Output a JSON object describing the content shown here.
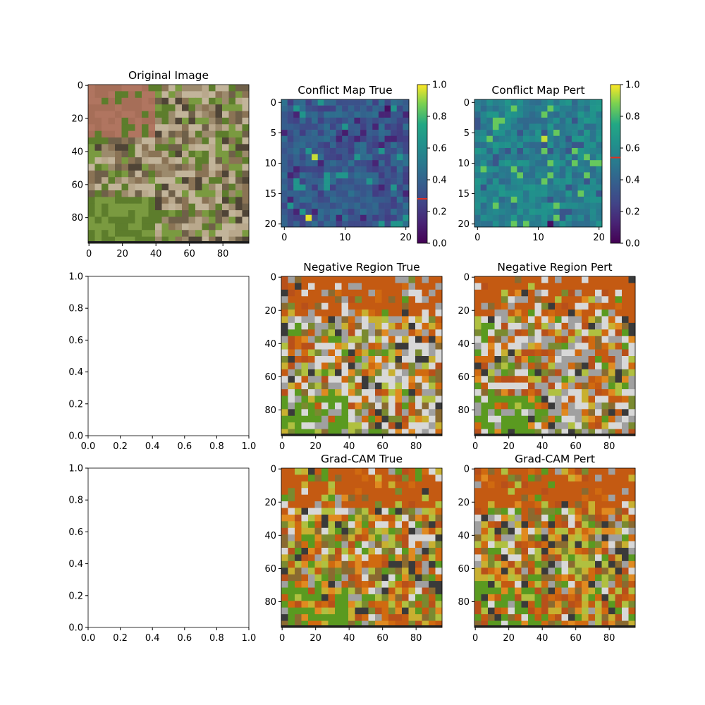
{
  "chart_data": [
    {
      "type": "image",
      "title": "Original Image",
      "xticks": [
        "0",
        "20",
        "40",
        "60",
        "80"
      ],
      "yticks": [
        "0",
        "20",
        "40",
        "60",
        "80"
      ],
      "xlim": [
        0,
        96
      ],
      "ylim": [
        96,
        0
      ],
      "description_colors": {
        "background": "#b07560",
        "foliage": "#7a9a40",
        "fur": "#8a7355"
      }
    },
    {
      "type": "heatmap",
      "title": "Conflict Map True",
      "xticks": [
        "0",
        "10",
        "20"
      ],
      "yticks": [
        "0",
        "5",
        "10",
        "15",
        "20"
      ],
      "grid_size": [
        21,
        21
      ],
      "colormap": "viridis",
      "colorbar_ticks": [
        "0.0",
        "0.2",
        "0.4",
        "0.6",
        "0.8",
        "1.0"
      ],
      "colorbar_range": [
        0,
        1
      ],
      "colorbar_marker": 0.28,
      "bright_cells": [
        {
          "row": 9,
          "col": 5,
          "value": 0.95
        },
        {
          "row": 19,
          "col": 4,
          "value": 0.98
        }
      ],
      "dark_cells": [
        {
          "row": 1,
          "col": 17,
          "value": 0.05
        },
        {
          "row": 5,
          "col": 10,
          "value": 0.1
        }
      ],
      "typical_value": 0.35
    },
    {
      "type": "heatmap",
      "title": "Conflict Map Pert",
      "xticks": [
        "0",
        "10",
        "20"
      ],
      "yticks": [
        "0",
        "5",
        "10",
        "15",
        "20"
      ],
      "grid_size": [
        21,
        21
      ],
      "colormap": "viridis",
      "colorbar_ticks": [
        "0.0",
        "0.2",
        "0.4",
        "0.6",
        "0.8",
        "1.0"
      ],
      "colorbar_range": [
        0,
        1
      ],
      "colorbar_marker": 0.54,
      "bright_cells": [
        {
          "row": 6,
          "col": 11,
          "value": 0.95
        }
      ],
      "dark_cells": [
        {
          "row": 20,
          "col": 12,
          "value": 0.05
        }
      ],
      "typical_value": 0.55
    },
    {
      "type": "empty",
      "title": "",
      "xticks": [
        "0.0",
        "0.2",
        "0.4",
        "0.6",
        "0.8",
        "1.0"
      ],
      "yticks": [
        "0.0",
        "0.2",
        "0.4",
        "0.6",
        "0.8",
        "1.0"
      ]
    },
    {
      "type": "image",
      "title": "Negative Region True",
      "xticks": [
        "0",
        "20",
        "40",
        "60",
        "80"
      ],
      "yticks": [
        "0",
        "20",
        "40",
        "60",
        "80"
      ]
    },
    {
      "type": "image",
      "title": "Negative Region Pert",
      "xticks": [
        "0",
        "20",
        "40",
        "60",
        "80"
      ],
      "yticks": [
        "0",
        "20",
        "40",
        "60",
        "80"
      ]
    },
    {
      "type": "empty",
      "title": "",
      "xticks": [
        "0.0",
        "0.2",
        "0.4",
        "0.6",
        "0.8",
        "1.0"
      ],
      "yticks": [
        "0.0",
        "0.2",
        "0.4",
        "0.6",
        "0.8",
        "1.0"
      ]
    },
    {
      "type": "image",
      "title": "Grad-CAM True",
      "xticks": [
        "0",
        "20",
        "40",
        "60",
        "80"
      ],
      "yticks": [
        "0",
        "20",
        "40",
        "60",
        "80"
      ]
    },
    {
      "type": "image",
      "title": "Grad-CAM Pert",
      "xticks": [
        "0",
        "20",
        "40",
        "60",
        "80"
      ],
      "yticks": [
        "0",
        "20",
        "40",
        "60",
        "80"
      ]
    }
  ]
}
